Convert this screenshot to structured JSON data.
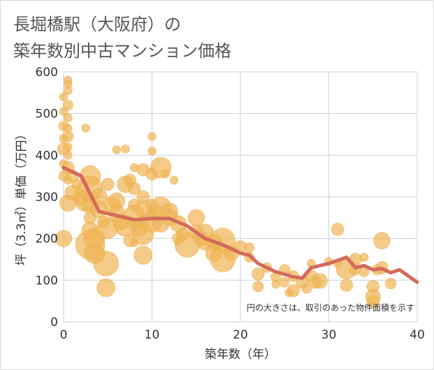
{
  "title_lines": [
    "長堀橋駅（大阪府）の",
    "築年数別中古マンション価格"
  ],
  "chart_data": {
    "type": "scatter",
    "xlabel": "築年数（年）",
    "ylabel": "坪（3.3㎡）単価（万円）",
    "xlim": [
      0,
      40
    ],
    "ylim": [
      0,
      600
    ],
    "xticks": [
      0,
      10,
      20,
      30,
      40
    ],
    "yticks": [
      0,
      100,
      200,
      300,
      400,
      500,
      600
    ],
    "grid": true,
    "note": "円の大きさは、取引のあった物件面積を示す",
    "colors": {
      "bubble": "#f0b557",
      "line": "#d46a5b",
      "grid": "#c8d2dc"
    },
    "bubbles": [
      {
        "x": 0,
        "y": 540,
        "s": 1
      },
      {
        "x": 0,
        "y": 505,
        "s": 1
      },
      {
        "x": 0,
        "y": 470,
        "s": 1.2
      },
      {
        "x": 0,
        "y": 440,
        "s": 1
      },
      {
        "x": 0,
        "y": 415,
        "s": 1.5
      },
      {
        "x": 0,
        "y": 380,
        "s": 1
      },
      {
        "x": 0,
        "y": 350,
        "s": 1.2
      },
      {
        "x": 0,
        "y": 200,
        "s": 2
      },
      {
        "x": 0.5,
        "y": 580,
        "s": 1
      },
      {
        "x": 0.5,
        "y": 570,
        "s": 1
      },
      {
        "x": 0.5,
        "y": 555,
        "s": 1
      },
      {
        "x": 0.5,
        "y": 520,
        "s": 1.2
      },
      {
        "x": 0.5,
        "y": 490,
        "s": 1
      },
      {
        "x": 0.5,
        "y": 465,
        "s": 1
      },
      {
        "x": 0.5,
        "y": 445,
        "s": 1.3
      },
      {
        "x": 0.5,
        "y": 420,
        "s": 1
      },
      {
        "x": 0.5,
        "y": 400,
        "s": 1
      },
      {
        "x": 0.5,
        "y": 370,
        "s": 1.5
      },
      {
        "x": 0.5,
        "y": 340,
        "s": 1
      },
      {
        "x": 0.5,
        "y": 285,
        "s": 2
      },
      {
        "x": 1,
        "y": 350,
        "s": 1.5
      },
      {
        "x": 1,
        "y": 310,
        "s": 1.8
      },
      {
        "x": 1.5,
        "y": 330,
        "s": 1.2
      },
      {
        "x": 2,
        "y": 300,
        "s": 2
      },
      {
        "x": 2.5,
        "y": 290,
        "s": 2.5
      },
      {
        "x": 3,
        "y": 350,
        "s": 2.5
      },
      {
        "x": 3,
        "y": 320,
        "s": 3
      },
      {
        "x": 3,
        "y": 280,
        "s": 2
      },
      {
        "x": 2.5,
        "y": 465,
        "s": 1
      },
      {
        "x": 3,
        "y": 250,
        "s": 1.5
      },
      {
        "x": 3,
        "y": 220,
        "s": 2
      },
      {
        "x": 3.5,
        "y": 200,
        "s": 2.5
      },
      {
        "x": 3,
        "y": 185,
        "s": 3.5
      },
      {
        "x": 3.5,
        "y": 165,
        "s": 2.5
      },
      {
        "x": 4,
        "y": 300,
        "s": 2
      },
      {
        "x": 4,
        "y": 270,
        "s": 2
      },
      {
        "x": 4.5,
        "y": 240,
        "s": 1.5
      },
      {
        "x": 5,
        "y": 225,
        "s": 2.5
      },
      {
        "x": 4.8,
        "y": 140,
        "s": 3
      },
      {
        "x": 4.8,
        "y": 82,
        "s": 2.2
      },
      {
        "x": 5,
        "y": 330,
        "s": 1.5
      },
      {
        "x": 5.5,
        "y": 280,
        "s": 2
      },
      {
        "x": 6,
        "y": 290,
        "s": 2
      },
      {
        "x": 6,
        "y": 413,
        "s": 1
      },
      {
        "x": 6,
        "y": 260,
        "s": 2
      },
      {
        "x": 6.5,
        "y": 240,
        "s": 2
      },
      {
        "x": 7,
        "y": 230,
        "s": 2.5
      },
      {
        "x": 7,
        "y": 330,
        "s": 2
      },
      {
        "x": 7,
        "y": 415,
        "s": 1
      },
      {
        "x": 7.5,
        "y": 340,
        "s": 1.5
      },
      {
        "x": 7.5,
        "y": 195,
        "s": 1.5
      },
      {
        "x": 8,
        "y": 370,
        "s": 1
      },
      {
        "x": 8,
        "y": 320,
        "s": 1.5
      },
      {
        "x": 8,
        "y": 280,
        "s": 1.5
      },
      {
        "x": 8,
        "y": 255,
        "s": 2.5
      },
      {
        "x": 8.5,
        "y": 225,
        "s": 2
      },
      {
        "x": 8,
        "y": 190,
        "s": 1
      },
      {
        "x": 9,
        "y": 365,
        "s": 1.5
      },
      {
        "x": 9,
        "y": 300,
        "s": 1.5
      },
      {
        "x": 9,
        "y": 270,
        "s": 2
      },
      {
        "x": 9,
        "y": 240,
        "s": 1.5
      },
      {
        "x": 9,
        "y": 210,
        "s": 2.5
      },
      {
        "x": 9,
        "y": 160,
        "s": 2.2
      },
      {
        "x": 10,
        "y": 445,
        "s": 1
      },
      {
        "x": 10,
        "y": 410,
        "s": 1
      },
      {
        "x": 10,
        "y": 355,
        "s": 1.5
      },
      {
        "x": 10,
        "y": 280,
        "s": 1.5
      },
      {
        "x": 10,
        "y": 240,
        "s": 2.5
      },
      {
        "x": 10.5,
        "y": 260,
        "s": 2
      },
      {
        "x": 11,
        "y": 370,
        "s": 2.5
      },
      {
        "x": 11,
        "y": 275,
        "s": 2.5
      },
      {
        "x": 11,
        "y": 235,
        "s": 2
      },
      {
        "x": 11.5,
        "y": 355,
        "s": 1
      },
      {
        "x": 12,
        "y": 265,
        "s": 2
      },
      {
        "x": 12,
        "y": 250,
        "s": 2
      },
      {
        "x": 12.5,
        "y": 340,
        "s": 1
      },
      {
        "x": 13,
        "y": 235,
        "s": 2
      },
      {
        "x": 13,
        "y": 200,
        "s": 1.5
      },
      {
        "x": 13.5,
        "y": 210,
        "s": 1.5
      },
      {
        "x": 14,
        "y": 185,
        "s": 3
      },
      {
        "x": 15,
        "y": 250,
        "s": 2
      },
      {
        "x": 15,
        "y": 215,
        "s": 1.8
      },
      {
        "x": 15.5,
        "y": 200,
        "s": 1.8
      },
      {
        "x": 16,
        "y": 215,
        "s": 2
      },
      {
        "x": 16,
        "y": 190,
        "s": 1.8
      },
      {
        "x": 17,
        "y": 190,
        "s": 2
      },
      {
        "x": 17,
        "y": 165,
        "s": 2
      },
      {
        "x": 18,
        "y": 195,
        "s": 3
      },
      {
        "x": 18,
        "y": 150,
        "s": 3
      },
      {
        "x": 19,
        "y": 165,
        "s": 1.8
      },
      {
        "x": 20,
        "y": 180,
        "s": 1.5
      },
      {
        "x": 21,
        "y": 178,
        "s": 1.2
      },
      {
        "x": 21,
        "y": 155,
        "s": 1.2
      },
      {
        "x": 22,
        "y": 115,
        "s": 1.5
      },
      {
        "x": 22,
        "y": 85,
        "s": 1.3
      },
      {
        "x": 23,
        "y": 130,
        "s": 1.2
      },
      {
        "x": 24,
        "y": 108,
        "s": 1.2
      },
      {
        "x": 24,
        "y": 90,
        "s": 1
      },
      {
        "x": 25,
        "y": 125,
        "s": 1.3
      },
      {
        "x": 25,
        "y": 95,
        "s": 1.2
      },
      {
        "x": 25.5,
        "y": 70,
        "s": 1
      },
      {
        "x": 26,
        "y": 110,
        "s": 1.3
      },
      {
        "x": 26,
        "y": 75,
        "s": 1.5
      },
      {
        "x": 27,
        "y": 95,
        "s": 1.5
      },
      {
        "x": 27.5,
        "y": 80,
        "s": 1.2
      },
      {
        "x": 28,
        "y": 140,
        "s": 1
      },
      {
        "x": 28,
        "y": 110,
        "s": 1.5
      },
      {
        "x": 28.5,
        "y": 95,
        "s": 1.5
      },
      {
        "x": 29,
        "y": 98,
        "s": 1.8
      },
      {
        "x": 30,
        "y": 145,
        "s": 1
      },
      {
        "x": 31,
        "y": 222,
        "s": 1.5
      },
      {
        "x": 31,
        "y": 140,
        "s": 1
      },
      {
        "x": 32,
        "y": 128,
        "s": 2.5
      },
      {
        "x": 32,
        "y": 88,
        "s": 1.5
      },
      {
        "x": 33,
        "y": 150,
        "s": 1.5
      },
      {
        "x": 33,
        "y": 125,
        "s": 1.3
      },
      {
        "x": 34,
        "y": 120,
        "s": 1.2
      },
      {
        "x": 34,
        "y": 155,
        "s": 1
      },
      {
        "x": 35,
        "y": 85,
        "s": 1.5
      },
      {
        "x": 35,
        "y": 60,
        "s": 1.8
      },
      {
        "x": 35,
        "y": 48,
        "s": 1.5
      },
      {
        "x": 35.5,
        "y": 125,
        "s": 1.3
      },
      {
        "x": 36,
        "y": 195,
        "s": 2
      },
      {
        "x": 36,
        "y": 130,
        "s": 1.5
      },
      {
        "x": 37,
        "y": 92,
        "s": 1.3
      }
    ],
    "trend": {
      "x": [
        0,
        2,
        4,
        6,
        8,
        10,
        12,
        14,
        16,
        18,
        20,
        21,
        22,
        24,
        26,
        27,
        28,
        30,
        32,
        33,
        34,
        35,
        36,
        37,
        38,
        40
      ],
      "y": [
        370,
        350,
        265,
        255,
        245,
        248,
        248,
        230,
        200,
        185,
        165,
        160,
        140,
        120,
        108,
        105,
        130,
        140,
        155,
        130,
        135,
        125,
        128,
        118,
        125,
        95
      ]
    }
  }
}
